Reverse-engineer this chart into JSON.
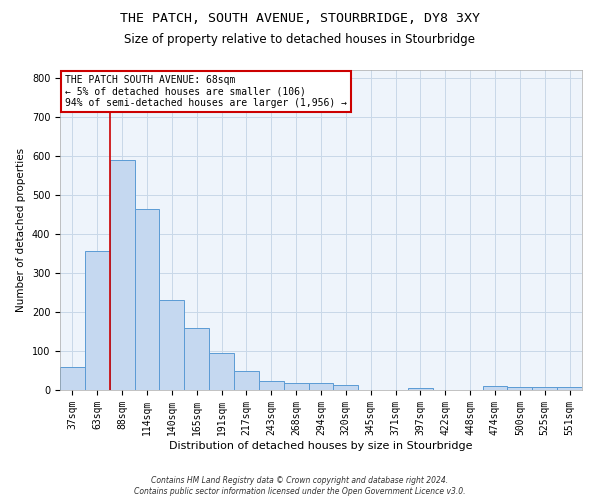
{
  "title": "THE PATCH, SOUTH AVENUE, STOURBRIDGE, DY8 3XY",
  "subtitle": "Size of property relative to detached houses in Stourbridge",
  "xlabel": "Distribution of detached houses by size in Stourbridge",
  "ylabel": "Number of detached properties",
  "footnote1": "Contains HM Land Registry data © Crown copyright and database right 2024.",
  "footnote2": "Contains public sector information licensed under the Open Government Licence v3.0.",
  "bar_labels": [
    "37sqm",
    "63sqm",
    "88sqm",
    "114sqm",
    "140sqm",
    "165sqm",
    "191sqm",
    "217sqm",
    "243sqm",
    "268sqm",
    "294sqm",
    "320sqm",
    "345sqm",
    "371sqm",
    "397sqm",
    "422sqm",
    "448sqm",
    "474sqm",
    "500sqm",
    "525sqm",
    "551sqm"
  ],
  "bar_values": [
    60,
    355,
    590,
    465,
    230,
    160,
    95,
    48,
    22,
    19,
    19,
    12,
    0,
    0,
    5,
    0,
    0,
    10,
    8,
    8,
    7
  ],
  "bar_color": "#c5d8f0",
  "bar_edge_color": "#5b9bd5",
  "vline_x": 1.5,
  "subject_label": "THE PATCH SOUTH AVENUE: 68sqm",
  "arrow_left": "← 5% of detached houses are smaller (106)",
  "arrow_right": "94% of semi-detached houses are larger (1,956) →",
  "annotation_box_color": "#cc0000",
  "vline_color": "#cc0000",
  "ylim": [
    0,
    820
  ],
  "yticks": [
    0,
    100,
    200,
    300,
    400,
    500,
    600,
    700,
    800
  ],
  "grid_color": "#c8d8e8",
  "background_color": "#eef4fb",
  "title_fontsize": 9.5,
  "subtitle_fontsize": 8.5,
  "xlabel_fontsize": 8,
  "ylabel_fontsize": 7.5,
  "tick_fontsize": 7,
  "annot_fontsize": 7,
  "footnote_fontsize": 5.5
}
